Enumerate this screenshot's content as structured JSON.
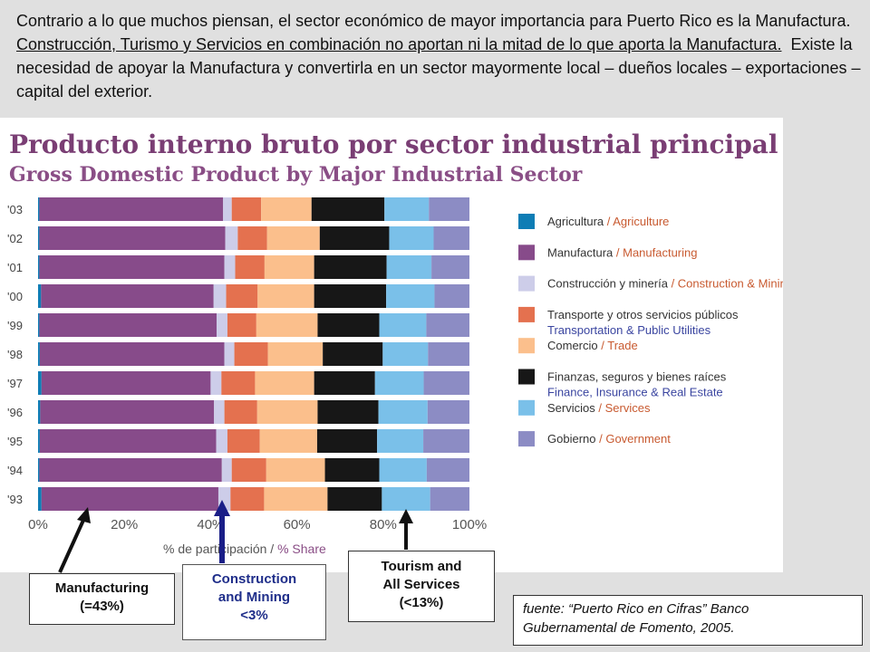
{
  "intro": {
    "s1": "Contrario a lo que muchos piensan, el sector económico de mayor importancia para Puerto Rico es la Manufactura.",
    "s2": "Construcción, Turismo y Servicios en combinación no aportan ni  la mitad de lo que aporta la Manufactura.",
    "s3": "Existe la necesidad de apoyar la Manufactura y convertirla en un sector mayormente local – dueños locales – exportaciones – capital del exterior."
  },
  "chart_data": {
    "type": "bar",
    "orientation": "horizontal",
    "stacked": true,
    "title": "Producto interno bruto por sector industrial principal",
    "subtitle": "Gross Domestic Product by Major Industrial Sector",
    "xlabel_es": "% de participación",
    "xlabel_en": "% Share",
    "xlim": [
      0,
      100
    ],
    "xticks": [
      "0%",
      "20%",
      "40%",
      "60%",
      "80%",
      "100%"
    ],
    "categories": [
      "'03",
      "'02",
      "'01",
      "'00",
      "'99",
      "'98",
      "'97",
      "'96",
      "'95",
      "'94",
      "'93"
    ],
    "legend_position": "right",
    "series": [
      {
        "name_es": "Agricultura",
        "name_en": "Agriculture",
        "color": "#0e7db5",
        "values": [
          0.3,
          0.3,
          0.3,
          0.7,
          0.3,
          0.4,
          0.8,
          0.5,
          0.4,
          0.3,
          0.8
        ]
      },
      {
        "name_es": "Manufactura",
        "name_en": "Manufacturing",
        "color": "#874b8a",
        "values": [
          42.6,
          43.1,
          42.9,
          40.0,
          41.1,
          42.8,
          39.2,
          40.3,
          40.9,
          42.3,
          41.0
        ]
      },
      {
        "name_es": "Construcción y minería",
        "name_en": "Construction & Mining",
        "color": "#cdcde9",
        "values": [
          2.0,
          2.9,
          2.5,
          2.9,
          2.5,
          2.3,
          2.5,
          2.4,
          2.6,
          2.3,
          2.8
        ]
      },
      {
        "name_es": "Transporte y otros servicios públicos",
        "name_en": "Transportation & Public Utilities",
        "color": "#e4714f",
        "values": [
          6.8,
          6.8,
          6.8,
          7.3,
          6.7,
          7.8,
          7.8,
          7.6,
          7.5,
          8.0,
          7.8
        ]
      },
      {
        "name_es": "Comercio",
        "name_en": "Trade",
        "color": "#fbbf8c",
        "values": [
          11.7,
          12.2,
          11.5,
          13.1,
          14.2,
          12.7,
          13.7,
          14.0,
          13.3,
          13.6,
          14.7
        ]
      },
      {
        "name_es": "Finanzas, seguros y bienes raíces",
        "name_en": "Finance, Insurance & Real Estate",
        "color": "#171717",
        "values": [
          16.9,
          16.1,
          16.8,
          16.7,
          14.3,
          13.9,
          14.1,
          14.1,
          13.9,
          12.6,
          12.6
        ]
      },
      {
        "name_es": "Servicios",
        "name_en": "Services",
        "color": "#7ac0e9",
        "values": [
          10.3,
          10.3,
          10.4,
          11.2,
          10.9,
          10.5,
          11.3,
          11.4,
          10.7,
          11.0,
          11.2
        ]
      },
      {
        "name_es": "Gobierno",
        "name_en": "Government",
        "color": "#8c8cc4",
        "values": [
          9.4,
          8.3,
          8.8,
          8.1,
          10.0,
          9.6,
          10.6,
          9.7,
          10.7,
          9.9,
          9.1
        ]
      }
    ]
  },
  "callouts": {
    "manufacturing": [
      "Manufacturing",
      "(=43%)"
    ],
    "construction": [
      "Construction",
      "and Mining",
      "<3%"
    ],
    "tourism": [
      "Tourism and",
      "All Services",
      "(<13%)"
    ]
  },
  "source": {
    "line1": "fuente:  “Puerto Rico en Cifras”  Banco",
    "line2": "Gubernamental de Fomento, 2005."
  },
  "colors": {
    "arrow_dark": "#111111",
    "arrow_blue": "#1a1e87"
  }
}
